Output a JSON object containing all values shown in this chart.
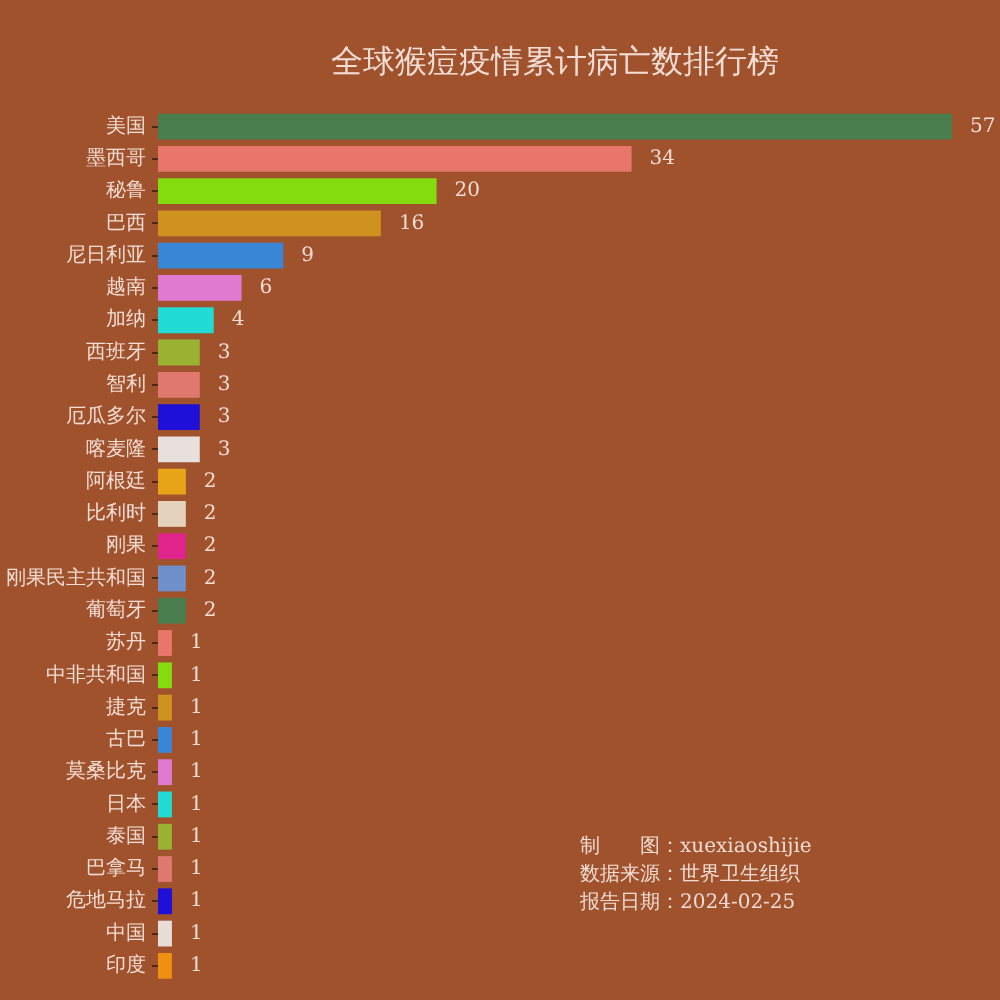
{
  "chart_data": {
    "type": "bar",
    "orientation": "horizontal",
    "title": "全球猴痘疫情累计病亡数排行榜",
    "categories": [
      "美国",
      "墨西哥",
      "秘鲁",
      "巴西",
      "尼日利亚",
      "越南",
      "加纳",
      "西班牙",
      "智利",
      "厄瓜多尔",
      "喀麦隆",
      "阿根廷",
      "比利时",
      "刚果",
      "刚果民主共和国",
      "葡萄牙",
      "苏丹",
      "中非共和国",
      "捷克",
      "古巴",
      "莫桑比克",
      "日本",
      "泰国",
      "巴拿马",
      "危地马拉",
      "中国",
      "印度"
    ],
    "values": [
      57,
      34,
      20,
      16,
      9,
      6,
      4,
      3,
      3,
      3,
      3,
      2,
      2,
      2,
      2,
      2,
      1,
      1,
      1,
      1,
      1,
      1,
      1,
      1,
      1,
      1,
      1
    ],
    "colors": [
      "#4a7d4e",
      "#e8766a",
      "#84dc0e",
      "#d0921e",
      "#3a86d6",
      "#e07ad0",
      "#20dcd4",
      "#9ab232",
      "#e07870",
      "#1e10d8",
      "#e8e0dc",
      "#e8a418",
      "#e4d2bc",
      "#e0248c",
      "#7090cc",
      "#4a7d4e",
      "#e8766a",
      "#84dc0e",
      "#d0921e",
      "#3a86d6",
      "#e07ad0",
      "#20dcd4",
      "#9ab232",
      "#e07870",
      "#1e10d8",
      "#e8dcd8",
      "#f09010"
    ],
    "data_labels": true,
    "annotations": [
      "制　　图：xuexiaoshijie",
      "数据来源：世界卫生组织",
      "报告日期：2024-02-25"
    ]
  }
}
